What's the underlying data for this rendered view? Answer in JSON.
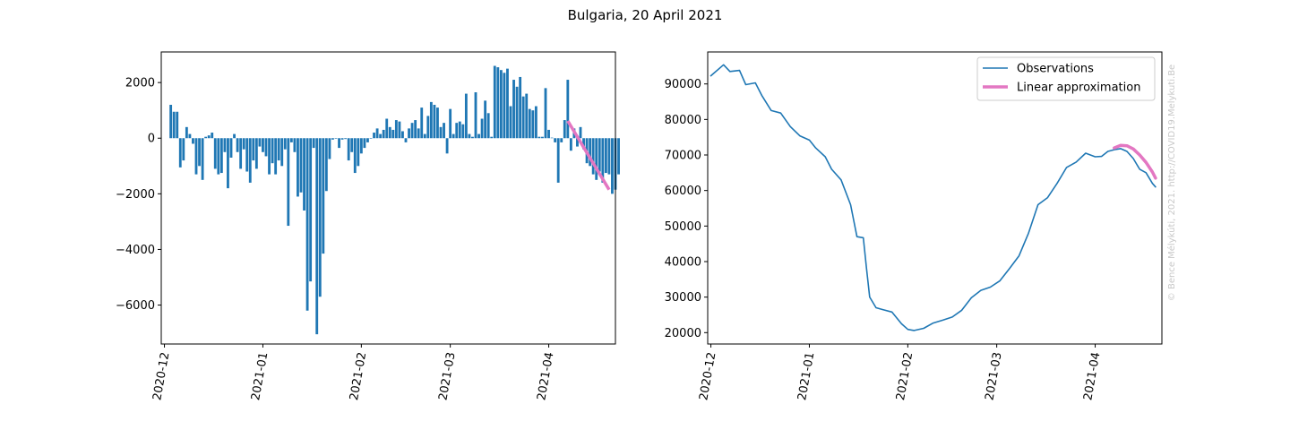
{
  "figure_title": "Bulgaria, 20 April 2021",
  "credit": "© Bence Mélykúti, 2021. http://COVID19.Melykuti.Be",
  "colors": {
    "bar": "#1f77b4",
    "observation": "#1f77b4",
    "approximation": "#e377c2"
  },
  "chart_data": [
    {
      "type": "bar",
      "title": "",
      "xlabel": "",
      "ylabel": "",
      "xlim": [
        "2020-11-30",
        "2021-04-22"
      ],
      "ylim": [
        -7400,
        3100
      ],
      "yticks": [
        2000,
        0,
        -2000,
        -4000,
        -6000
      ],
      "ytick_labels": [
        "2000",
        "0",
        "−2000",
        "−4000",
        "−6000"
      ],
      "xticks": [
        "2020-12-01",
        "2021-01-01",
        "2021-02-01",
        "2021-03-01",
        "2021-04-01"
      ],
      "xtick_labels": [
        "2020-12",
        "2021-01",
        "2021-02",
        "2021-03",
        "2021-04"
      ],
      "start_date": "2020-12-03",
      "values": [
        1200,
        950,
        950,
        -1050,
        -800,
        400,
        150,
        -200,
        -1300,
        -1000,
        -1500,
        50,
        100,
        200,
        -1100,
        -1300,
        -1250,
        -500,
        -1800,
        -700,
        150,
        -500,
        -1100,
        -400,
        -1200,
        -1600,
        -800,
        -1100,
        -300,
        -500,
        -650,
        -1300,
        -900,
        -1300,
        -800,
        -1000,
        -400,
        -3150,
        -150,
        -500,
        -2100,
        -1950,
        -2600,
        -6200,
        -5150,
        -350,
        -7050,
        -5700,
        -4150,
        -1900,
        -750,
        -50,
        -20,
        -350,
        -50,
        -30,
        -800,
        -500,
        -1250,
        -1000,
        -550,
        -350,
        -150,
        -20,
        200,
        350,
        150,
        300,
        700,
        400,
        300,
        650,
        600,
        250,
        -150,
        350,
        550,
        650,
        350,
        1100,
        150,
        800,
        1300,
        1200,
        1100,
        400,
        550,
        -550,
        1050,
        150,
        550,
        600,
        500,
        1600,
        150,
        50,
        1650,
        150,
        700,
        1350,
        900,
        50,
        2600,
        2550,
        2450,
        2350,
        2500,
        1150,
        2100,
        1850,
        2200,
        1500,
        1600,
        1050,
        1000,
        1150,
        50,
        50,
        1800,
        300,
        20,
        -150,
        -1600,
        -150,
        650,
        2100,
        -450,
        350,
        -300,
        400,
        -400,
        -900,
        -1000,
        -1300,
        -1500,
        -1200,
        -1600,
        -1250,
        -1300,
        -2000,
        -1850,
        -1300
      ],
      "line": {
        "name": "",
        "x": [
          "2021-04-07",
          "2021-04-20"
        ],
        "y": [
          620,
          -1850
        ]
      }
    },
    {
      "type": "line",
      "title": "",
      "xlabel": "",
      "ylabel": "",
      "xlim": [
        "2020-11-30",
        "2021-04-22"
      ],
      "ylim": [
        16800,
        99000
      ],
      "yticks": [
        90000,
        80000,
        70000,
        60000,
        50000,
        40000,
        30000,
        20000
      ],
      "ytick_labels": [
        "90000",
        "80000",
        "70000",
        "60000",
        "50000",
        "40000",
        "30000",
        "20000"
      ],
      "xticks": [
        "2020-12-01",
        "2021-01-01",
        "2021-02-01",
        "2021-03-01",
        "2021-04-01"
      ],
      "xtick_labels": [
        "2020-12",
        "2021-01",
        "2021-02",
        "2021-03",
        "2021-04"
      ],
      "legend": "top-right",
      "series": [
        {
          "name": "Observations",
          "x": [
            "2020-12-01",
            "2020-12-05",
            "2020-12-07",
            "2020-12-10",
            "2020-12-12",
            "2020-12-15",
            "2020-12-17",
            "2020-12-20",
            "2020-12-23",
            "2020-12-26",
            "2020-12-29",
            "2021-01-01",
            "2021-01-03",
            "2021-01-06",
            "2021-01-08",
            "2021-01-11",
            "2021-01-14",
            "2021-01-16",
            "2021-01-18",
            "2021-01-19",
            "2021-01-20",
            "2021-01-22",
            "2021-01-24",
            "2021-01-27",
            "2021-01-30",
            "2021-02-01",
            "2021-02-03",
            "2021-02-06",
            "2021-02-09",
            "2021-02-12",
            "2021-02-15",
            "2021-02-18",
            "2021-02-21",
            "2021-02-24",
            "2021-02-27",
            "2021-03-02",
            "2021-03-05",
            "2021-03-08",
            "2021-03-11",
            "2021-03-14",
            "2021-03-17",
            "2021-03-20",
            "2021-03-23",
            "2021-03-26",
            "2021-03-29",
            "2021-04-01",
            "2021-04-03",
            "2021-04-05",
            "2021-04-07",
            "2021-04-09",
            "2021-04-11",
            "2021-04-13",
            "2021-04-15",
            "2021-04-17",
            "2021-04-19",
            "2021-04-20"
          ],
          "y": [
            92300,
            95400,
            93500,
            93800,
            89800,
            90300,
            86800,
            82500,
            81800,
            78000,
            75400,
            74200,
            72000,
            69500,
            66000,
            63000,
            56000,
            47000,
            46700,
            38000,
            30000,
            27000,
            26500,
            25800,
            22500,
            20900,
            20600,
            21200,
            22700,
            23500,
            24400,
            26300,
            29800,
            31900,
            32800,
            34600,
            38000,
            41600,
            48000,
            56000,
            58000,
            62000,
            66500,
            68000,
            70500,
            69500,
            69600,
            71000,
            71500,
            71800,
            71000,
            69000,
            66000,
            65000,
            62000,
            61000
          ]
        },
        {
          "name": "Linear approximation",
          "x": [
            "2021-04-07",
            "2021-04-09",
            "2021-04-11",
            "2021-04-13",
            "2021-04-15",
            "2021-04-17",
            "2021-04-19",
            "2021-04-20"
          ],
          "y": [
            72000,
            72700,
            72600,
            71700,
            70000,
            67900,
            65200,
            63500
          ]
        }
      ]
    }
  ]
}
